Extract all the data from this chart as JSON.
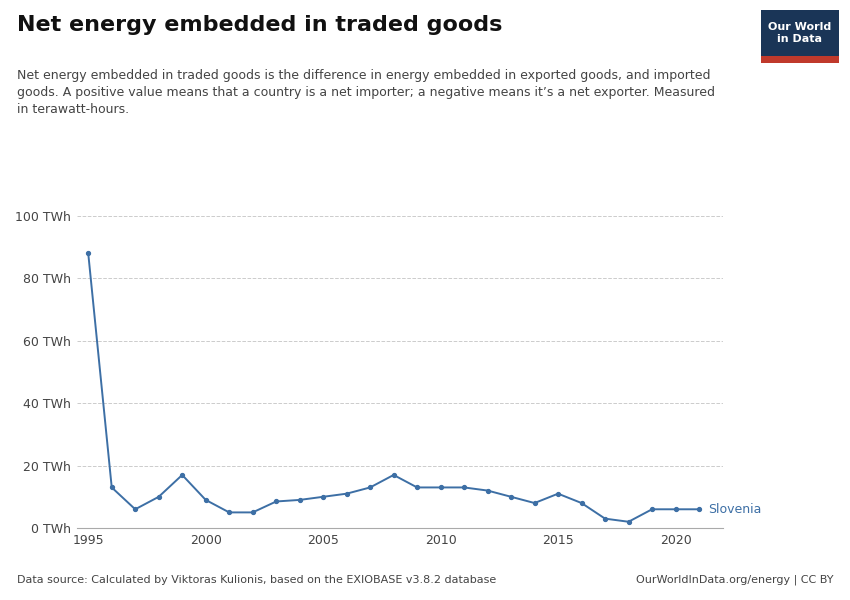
{
  "title": "Net energy embedded in traded goods",
  "subtitle": "Net energy embedded in traded goods is the difference in energy embedded in exported goods, and imported\ngoods. A positive value means that a country is a net importer; a negative means it’s a net exporter. Measured\nin terawatt-hours.",
  "datasource": "Data source: Calculated by Viktoras Kulionis, based on the EXIOBASE v3.8.2 database",
  "credit": "OurWorldInData.org/energy | CC BY",
  "line_color": "#3d6fa5",
  "line_label": "Slovenia",
  "years": [
    1995,
    1996,
    1997,
    1998,
    1999,
    2000,
    2001,
    2002,
    2003,
    2004,
    2005,
    2006,
    2007,
    2008,
    2009,
    2010,
    2011,
    2012,
    2013,
    2014,
    2015,
    2016,
    2017,
    2018,
    2019,
    2020,
    2021
  ],
  "values": [
    88,
    13,
    6,
    10,
    17,
    9,
    5,
    5,
    8.5,
    9,
    10,
    11,
    13,
    17,
    13,
    13,
    13,
    12,
    10,
    8,
    11,
    8,
    3,
    2,
    6,
    6,
    6
  ],
  "yticks": [
    0,
    20,
    40,
    60,
    80,
    100
  ],
  "ytick_labels": [
    "0 TWh",
    "20 TWh",
    "40 TWh",
    "60 TWh",
    "80 TWh",
    "100 TWh"
  ],
  "xticks": [
    1995,
    2000,
    2005,
    2010,
    2015,
    2020
  ],
  "ylim": [
    0,
    100
  ],
  "xlim": [
    1994.5,
    2022
  ],
  "background_color": "#ffffff",
  "grid_color": "#cccccc",
  "owid_box_color": "#1a3557",
  "owid_red": "#c0392b",
  "title_fontsize": 16,
  "subtitle_fontsize": 9,
  "tick_fontsize": 9,
  "label_fontsize": 9,
  "footnote_fontsize": 8
}
